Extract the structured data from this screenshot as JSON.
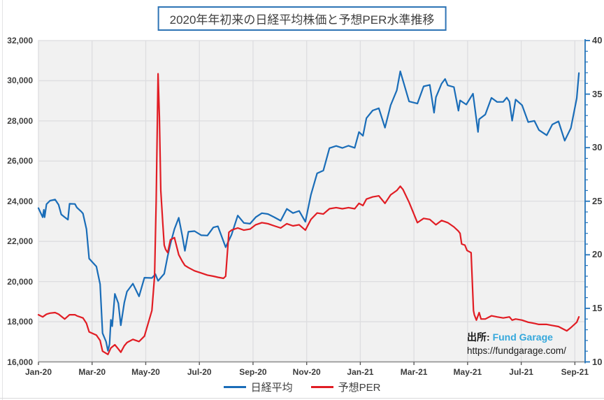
{
  "title": "2020年年初来の日経平均株価と予想PER水準推移",
  "source": {
    "prefix": "出所:",
    "name": "Fund Garage",
    "url": "https://fundgarage.com/"
  },
  "legend": [
    {
      "label": "日経平均",
      "color": "#1a6db8"
    },
    {
      "label": "予想PER",
      "color": "#e11d24"
    }
  ],
  "colors": {
    "plot_bg": "#f1f1f1",
    "gridline": "#dddde0",
    "x_axis_line": "#8c8c8c",
    "x_tick": "#595959",
    "right_axis": "#2575bb",
    "title_border": "#2e74b5",
    "nikkei_line": "#1a6db8",
    "per_line": "#e11d24"
  },
  "chart_data": {
    "type": "line",
    "title": "2020年年初来の日経平均株価と予想PER水準推移",
    "x_axis": {
      "tick_labels": [
        "Jan-20",
        "Mar-20",
        "May-20",
        "Jul-20",
        "Sep-20",
        "Nov-20",
        "Jan-21",
        "Mar-21",
        "May-21",
        "Jul-21",
        "Sep-21"
      ],
      "tick_months": [
        0,
        2,
        4,
        6,
        8,
        10,
        12,
        14,
        16,
        18,
        20
      ]
    },
    "y_left": {
      "min": 16000,
      "max": 32000,
      "step": 2000,
      "series": "日経平均",
      "grid": true
    },
    "y_right": {
      "min": 10,
      "max": 40,
      "step": 5,
      "minor_step": 1,
      "series": "予想PER"
    },
    "legend_position": "bottom",
    "series": [
      {
        "name": "日経平均",
        "axis": "left",
        "color": "#1a6db8",
        "points": [
          [
            0.0,
            23657
          ],
          [
            0.16,
            23205
          ],
          [
            0.2,
            23575
          ],
          [
            0.23,
            23204
          ],
          [
            0.3,
            23851
          ],
          [
            0.43,
            24025
          ],
          [
            0.62,
            24084
          ],
          [
            0.75,
            23827
          ],
          [
            0.85,
            23344
          ],
          [
            0.98,
            23205
          ],
          [
            1.1,
            23084
          ],
          [
            1.16,
            23873
          ],
          [
            1.36,
            23861
          ],
          [
            1.43,
            23687
          ],
          [
            1.6,
            23479
          ],
          [
            1.66,
            23387
          ],
          [
            1.79,
            22605
          ],
          [
            1.89,
            21143
          ],
          [
            2.16,
            20750
          ],
          [
            2.3,
            19867
          ],
          [
            2.39,
            17431
          ],
          [
            2.52,
            17011
          ],
          [
            2.59,
            16553
          ],
          [
            2.65,
            16888
          ],
          [
            2.7,
            18092
          ],
          [
            2.75,
            17776
          ],
          [
            2.85,
            19389
          ],
          [
            2.98,
            18917
          ],
          [
            3.07,
            17820
          ],
          [
            3.2,
            18950
          ],
          [
            3.3,
            19499
          ],
          [
            3.52,
            19897
          ],
          [
            3.75,
            19262
          ],
          [
            3.95,
            20194
          ],
          [
            4.23,
            20179
          ],
          [
            4.36,
            20366
          ],
          [
            4.46,
            20037
          ],
          [
            4.69,
            20388
          ],
          [
            4.82,
            21271
          ],
          [
            4.92,
            21877
          ],
          [
            5.07,
            22614
          ],
          [
            5.23,
            23178
          ],
          [
            5.36,
            22305
          ],
          [
            5.46,
            21531
          ],
          [
            5.59,
            22479
          ],
          [
            5.82,
            22512
          ],
          [
            6.07,
            22306
          ],
          [
            6.3,
            22291
          ],
          [
            6.52,
            22696
          ],
          [
            6.69,
            22752
          ],
          [
            6.98,
            21710
          ],
          [
            7.2,
            22330
          ],
          [
            7.43,
            23289
          ],
          [
            7.66,
            22920
          ],
          [
            7.89,
            22882
          ],
          [
            8.1,
            23205
          ],
          [
            8.33,
            23406
          ],
          [
            8.56,
            23360
          ],
          [
            8.79,
            23204
          ],
          [
            9.03,
            23030
          ],
          [
            9.26,
            23620
          ],
          [
            9.49,
            23411
          ],
          [
            9.72,
            23517
          ],
          [
            9.95,
            22977
          ],
          [
            10.16,
            24325
          ],
          [
            10.39,
            25386
          ],
          [
            10.62,
            25527
          ],
          [
            10.85,
            26645
          ],
          [
            11.1,
            26751
          ],
          [
            11.33,
            26653
          ],
          [
            11.56,
            26763
          ],
          [
            11.79,
            26657
          ],
          [
            11.95,
            27444
          ],
          [
            12.1,
            27259
          ],
          [
            12.23,
            28139
          ],
          [
            12.46,
            28519
          ],
          [
            12.69,
            28631
          ],
          [
            12.92,
            27663
          ],
          [
            13.13,
            28779
          ],
          [
            13.36,
            29520
          ],
          [
            13.49,
            30467
          ],
          [
            13.59,
            30018
          ],
          [
            13.82,
            28966
          ],
          [
            14.13,
            28864
          ],
          [
            14.36,
            29718
          ],
          [
            14.59,
            29792
          ],
          [
            14.75,
            28406
          ],
          [
            14.82,
            29177
          ],
          [
            15.03,
            29854
          ],
          [
            15.16,
            30089
          ],
          [
            15.26,
            29768
          ],
          [
            15.49,
            29683
          ],
          [
            15.66,
            28508
          ],
          [
            15.72,
            29020
          ],
          [
            15.95,
            28813
          ],
          [
            16.2,
            29358
          ],
          [
            16.39,
            27448
          ],
          [
            16.43,
            28084
          ],
          [
            16.66,
            28318
          ],
          [
            16.89,
            29149
          ],
          [
            17.1,
            28942
          ],
          [
            17.33,
            28949
          ],
          [
            17.46,
            29161
          ],
          [
            17.56,
            28964
          ],
          [
            17.66,
            28011
          ],
          [
            17.79,
            29066
          ],
          [
            18.03,
            28783
          ],
          [
            18.26,
            27940
          ],
          [
            18.49,
            28003
          ],
          [
            18.66,
            27548
          ],
          [
            18.95,
            27284
          ],
          [
            19.16,
            27820
          ],
          [
            19.39,
            27977
          ],
          [
            19.62,
            27013
          ],
          [
            19.85,
            27641
          ],
          [
            20.07,
            29128
          ],
          [
            20.15,
            30382
          ]
        ]
      },
      {
        "name": "予想PER",
        "axis": "right",
        "color": "#e11d24",
        "points": [
          [
            0.0,
            14.4
          ],
          [
            0.16,
            14.2
          ],
          [
            0.3,
            14.45
          ],
          [
            0.43,
            14.55
          ],
          [
            0.62,
            14.6
          ],
          [
            0.75,
            14.45
          ],
          [
            0.98,
            14.0
          ],
          [
            1.16,
            14.4
          ],
          [
            1.36,
            14.4
          ],
          [
            1.43,
            14.3
          ],
          [
            1.66,
            14.1
          ],
          [
            1.79,
            13.6
          ],
          [
            1.89,
            12.8
          ],
          [
            2.16,
            12.5
          ],
          [
            2.3,
            12.0
          ],
          [
            2.39,
            11.0
          ],
          [
            2.52,
            10.8
          ],
          [
            2.59,
            10.7
          ],
          [
            2.7,
            11.3
          ],
          [
            2.85,
            11.6
          ],
          [
            2.98,
            11.2
          ],
          [
            3.07,
            10.9
          ],
          [
            3.2,
            11.5
          ],
          [
            3.3,
            11.8
          ],
          [
            3.52,
            12.1
          ],
          [
            3.75,
            11.9
          ],
          [
            3.95,
            12.4
          ],
          [
            4.23,
            14.8
          ],
          [
            4.33,
            18.0
          ],
          [
            4.39,
            25.0
          ],
          [
            4.46,
            36.9
          ],
          [
            4.51,
            32.9
          ],
          [
            4.56,
            26.0
          ],
          [
            4.64,
            22.8
          ],
          [
            4.69,
            20.9
          ],
          [
            4.74,
            20.5
          ],
          [
            4.82,
            20.2
          ],
          [
            4.92,
            21.4
          ],
          [
            5.07,
            21.6
          ],
          [
            5.15,
            20.8
          ],
          [
            5.23,
            20.0
          ],
          [
            5.36,
            19.4
          ],
          [
            5.46,
            19.0
          ],
          [
            5.59,
            18.8
          ],
          [
            5.82,
            18.5
          ],
          [
            6.07,
            18.3
          ],
          [
            6.3,
            18.1
          ],
          [
            6.52,
            18.0
          ],
          [
            6.69,
            17.9
          ],
          [
            6.9,
            17.8
          ],
          [
            6.98,
            18.0
          ],
          [
            7.1,
            22.1
          ],
          [
            7.2,
            22.3
          ],
          [
            7.43,
            22.5
          ],
          [
            7.66,
            22.3
          ],
          [
            7.89,
            22.4
          ],
          [
            8.1,
            22.8
          ],
          [
            8.33,
            23.0
          ],
          [
            8.56,
            22.9
          ],
          [
            8.79,
            22.7
          ],
          [
            9.03,
            22.5
          ],
          [
            9.26,
            22.9
          ],
          [
            9.49,
            22.7
          ],
          [
            9.72,
            22.8
          ],
          [
            9.95,
            22.3
          ],
          [
            10.16,
            23.3
          ],
          [
            10.39,
            23.9
          ],
          [
            10.62,
            23.8
          ],
          [
            10.85,
            24.3
          ],
          [
            11.1,
            24.4
          ],
          [
            11.33,
            24.3
          ],
          [
            11.56,
            24.4
          ],
          [
            11.79,
            24.3
          ],
          [
            11.95,
            24.8
          ],
          [
            12.1,
            24.6
          ],
          [
            12.23,
            25.2
          ],
          [
            12.46,
            25.4
          ],
          [
            12.69,
            25.5
          ],
          [
            12.92,
            24.8
          ],
          [
            13.13,
            25.6
          ],
          [
            13.36,
            26.0
          ],
          [
            13.49,
            26.4
          ],
          [
            13.59,
            26.1
          ],
          [
            13.82,
            24.9
          ],
          [
            14.13,
            23.0
          ],
          [
            14.36,
            23.4
          ],
          [
            14.59,
            23.3
          ],
          [
            14.82,
            22.8
          ],
          [
            15.03,
            23.2
          ],
          [
            15.26,
            23.0
          ],
          [
            15.49,
            22.6
          ],
          [
            15.66,
            22.2
          ],
          [
            15.72,
            22.0
          ],
          [
            15.78,
            21.0
          ],
          [
            15.9,
            20.9
          ],
          [
            15.98,
            20.4
          ],
          [
            16.13,
            20.2
          ],
          [
            16.22,
            14.8
          ],
          [
            16.25,
            14.4
          ],
          [
            16.33,
            13.9
          ],
          [
            16.43,
            14.6
          ],
          [
            16.5,
            14.0
          ],
          [
            16.66,
            14.0
          ],
          [
            16.89,
            14.3
          ],
          [
            17.1,
            14.2
          ],
          [
            17.33,
            14.1
          ],
          [
            17.56,
            14.2
          ],
          [
            17.66,
            13.9
          ],
          [
            17.79,
            14.0
          ],
          [
            18.03,
            13.9
          ],
          [
            18.26,
            13.7
          ],
          [
            18.49,
            13.6
          ],
          [
            18.66,
            13.5
          ],
          [
            18.95,
            13.5
          ],
          [
            19.16,
            13.4
          ],
          [
            19.39,
            13.3
          ],
          [
            19.62,
            13.0
          ],
          [
            19.7,
            12.9
          ],
          [
            19.85,
            13.2
          ],
          [
            20.07,
            13.7
          ],
          [
            20.15,
            14.2
          ]
        ]
      }
    ]
  }
}
